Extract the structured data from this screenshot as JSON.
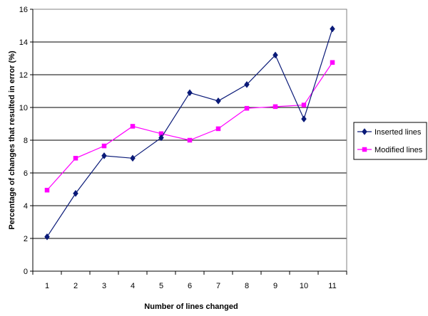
{
  "chart_data": {
    "type": "line",
    "categories": [
      "1",
      "2",
      "3",
      "4",
      "5",
      "6",
      "7",
      "8",
      "9",
      "10",
      "11"
    ],
    "series": [
      {
        "name": "Inserted lines",
        "color": "#0a1a78",
        "marker": "diamond",
        "values": [
          2.1,
          4.75,
          7.05,
          6.9,
          8.15,
          10.9,
          10.4,
          11.4,
          13.2,
          9.3,
          14.8
        ]
      },
      {
        "name": "Modified lines",
        "color": "#ff00ff",
        "marker": "square",
        "values": [
          4.95,
          6.9,
          7.65,
          8.85,
          8.4,
          8.0,
          8.7,
          9.95,
          10.05,
          10.15,
          12.75
        ]
      }
    ],
    "xlabel": "Number of lines changed",
    "ylabel": "Percentage of changes that resulted in error (%)",
    "ylim": [
      0,
      16
    ],
    "yticks": [
      "0",
      "2",
      "4",
      "6",
      "8",
      "10",
      "12",
      "14",
      "16"
    ],
    "grid": true,
    "legend": "right"
  }
}
